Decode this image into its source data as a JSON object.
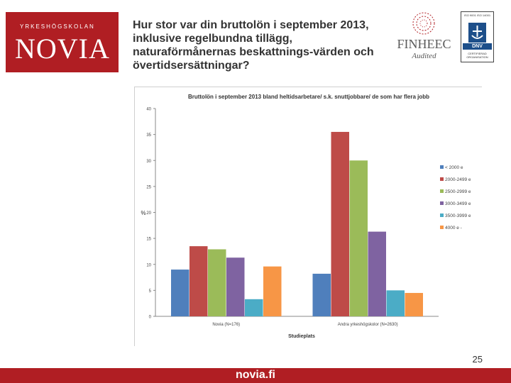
{
  "logo": {
    "top": "YRKESHÖGSKOLAN",
    "main": "NOVIA"
  },
  "slide_title": "Hur stor var din bruttolön i september 2013, inklusive regelbundna tillägg, naturaförmånernas beskattnings-värden och övertidsersättningar?",
  "finheec": {
    "main": "FINHEEC",
    "sub": "Audited"
  },
  "dnv": {
    "top": "ISO 9001 ISO 14001",
    "name": "DNV",
    "bottom": "CERTIFIERAD ORGANISATION"
  },
  "page_number": "25",
  "footer": {
    "text": "novia.fi"
  },
  "colors": {
    "brand": "#b01e23"
  },
  "chart_data": {
    "type": "bar",
    "title": "Bruttolön i september 2013 bland heltidsarbetare/ s.k. snuttjobbare/ de som har flera jobb",
    "xlabel": "Studieplats",
    "ylabel": "%",
    "ylim": [
      0,
      40
    ],
    "yticks": [
      "0",
      "5",
      "10",
      "15",
      "20",
      "25",
      "30",
      "35",
      "40"
    ],
    "grid": false,
    "legend_position": "right",
    "categories": [
      "Novia (N=176)",
      "Andra yrkeshögskolor (N=2630)"
    ],
    "series": [
      {
        "name": "< 2000 e",
        "color": "#4f7fbc",
        "values": [
          9.0,
          8.2
        ]
      },
      {
        "name": "2000-2499 e",
        "color": "#be4b48",
        "values": [
          13.5,
          35.5
        ]
      },
      {
        "name": "2500-2999 e",
        "color": "#9bbb59",
        "values": [
          12.9,
          30.0
        ]
      },
      {
        "name": "3000-3499 e",
        "color": "#7f63a1",
        "values": [
          11.3,
          16.3
        ]
      },
      {
        "name": "3500-3999 e",
        "color": "#4bacc6",
        "values": [
          3.3,
          5.0
        ]
      },
      {
        "name": "4000 e -",
        "color": "#f79646",
        "values": [
          9.6,
          4.5
        ]
      }
    ]
  }
}
